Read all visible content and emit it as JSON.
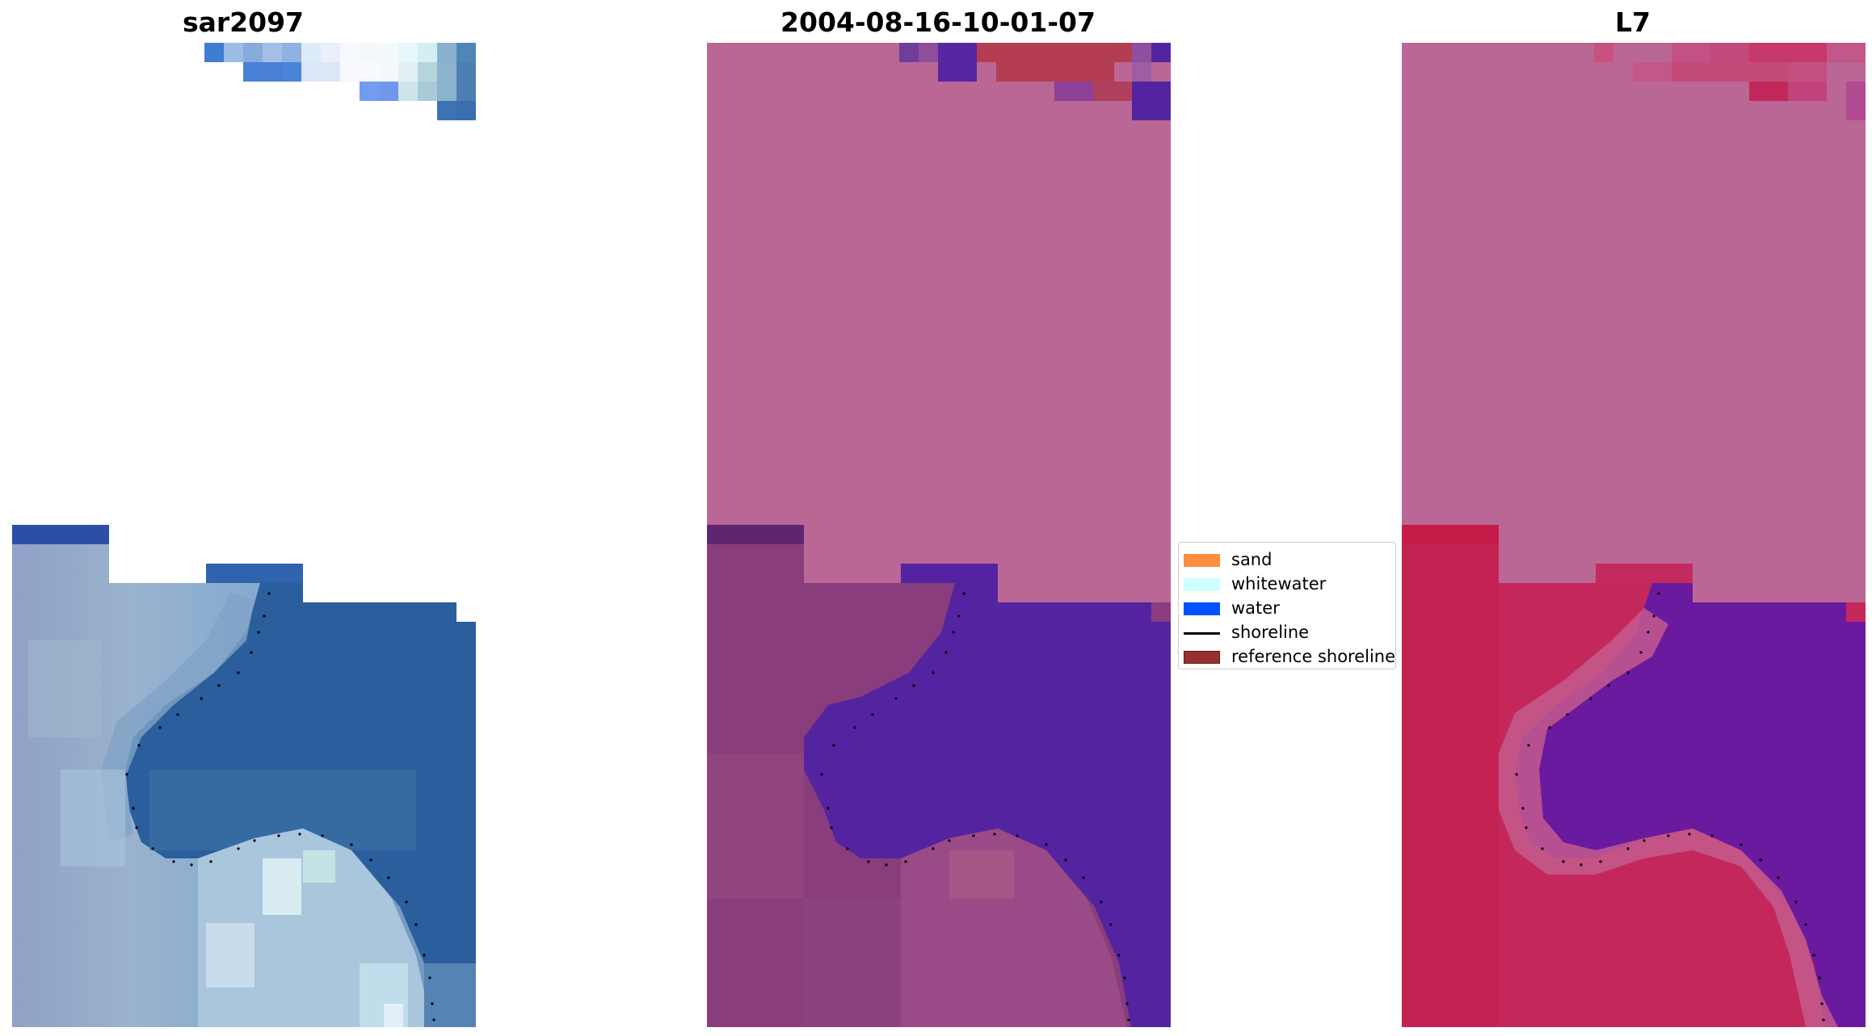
{
  "panels": [
    {
      "title": "sar2097"
    },
    {
      "title": "2004-08-16-10-01-07"
    },
    {
      "title": "L7"
    }
  ],
  "legend": {
    "items": [
      {
        "label": "sand",
        "type": "patch",
        "color": "#ff8c3f"
      },
      {
        "label": "whitewater",
        "type": "patch",
        "color": "#ccffff"
      },
      {
        "label": "water",
        "type": "patch",
        "color": "#0052ff"
      },
      {
        "label": "shoreline",
        "type": "line",
        "color": "#000000"
      },
      {
        "label": "reference shoreline",
        "type": "patch",
        "color": "#963031"
      }
    ]
  }
}
